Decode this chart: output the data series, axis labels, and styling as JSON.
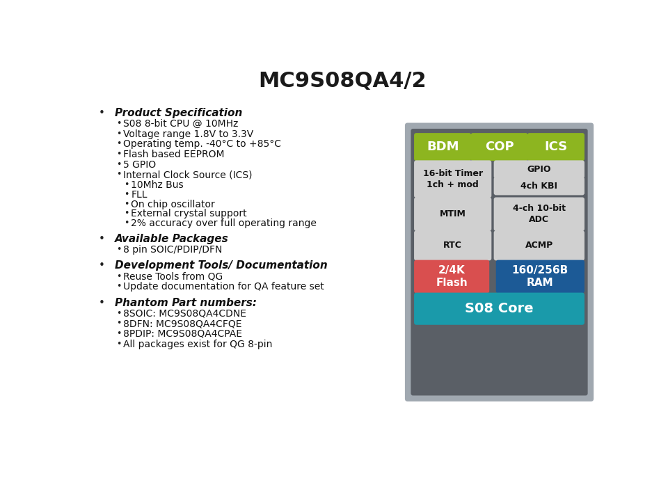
{
  "title": "MC9S08QA4/2",
  "title_fontsize": 22,
  "title_fontweight": "bold",
  "bg_color": "#ffffff",
  "text_color": "#1a1a1a",
  "bullet_sections": [
    {
      "heading": "Product Specification",
      "items": [
        "S08 8-bit CPU @ 10MHz",
        "Voltage range 1.8V to 3.3V",
        "Operating temp. -40°C to +85°C",
        "Flash based EEPROM",
        "5 GPIO",
        "Internal Clock Source (ICS)",
        [
          "10Mhz Bus",
          "FLL",
          "On chip oscillator",
          "External crystal support",
          "2% accuracy over full operating range"
        ]
      ]
    },
    {
      "heading": "Available Packages",
      "items": [
        "8 pin SOIC/PDIP/DFN"
      ]
    },
    {
      "heading": "Development Tools/ Documentation",
      "items": [
        "Reuse Tools from QG",
        "Update documentation for QA feature set"
      ]
    },
    {
      "heading": "Phantom Part numbers:",
      "items": [
        "8SOIC: MC9S08QA4CDNE",
        "8DFN: MC9S08QA4CFQE",
        "8PDIP: MC9S08QA4CPAE",
        "All packages exist for QG 8-pin"
      ]
    }
  ],
  "diagram": {
    "outer_bg": "#a0a8b0",
    "inner_bg": "#5a5f66",
    "green_color": "#8db520",
    "light_gray": "#d0d0d0",
    "red_color": "#d94f4f",
    "blue_color": "#1c5a96",
    "teal_color": "#1a9aaa",
    "white_text": "#ffffff",
    "dark_text": "#111111",
    "top_blocks": [
      "BDM",
      "COP",
      "ICS"
    ]
  }
}
